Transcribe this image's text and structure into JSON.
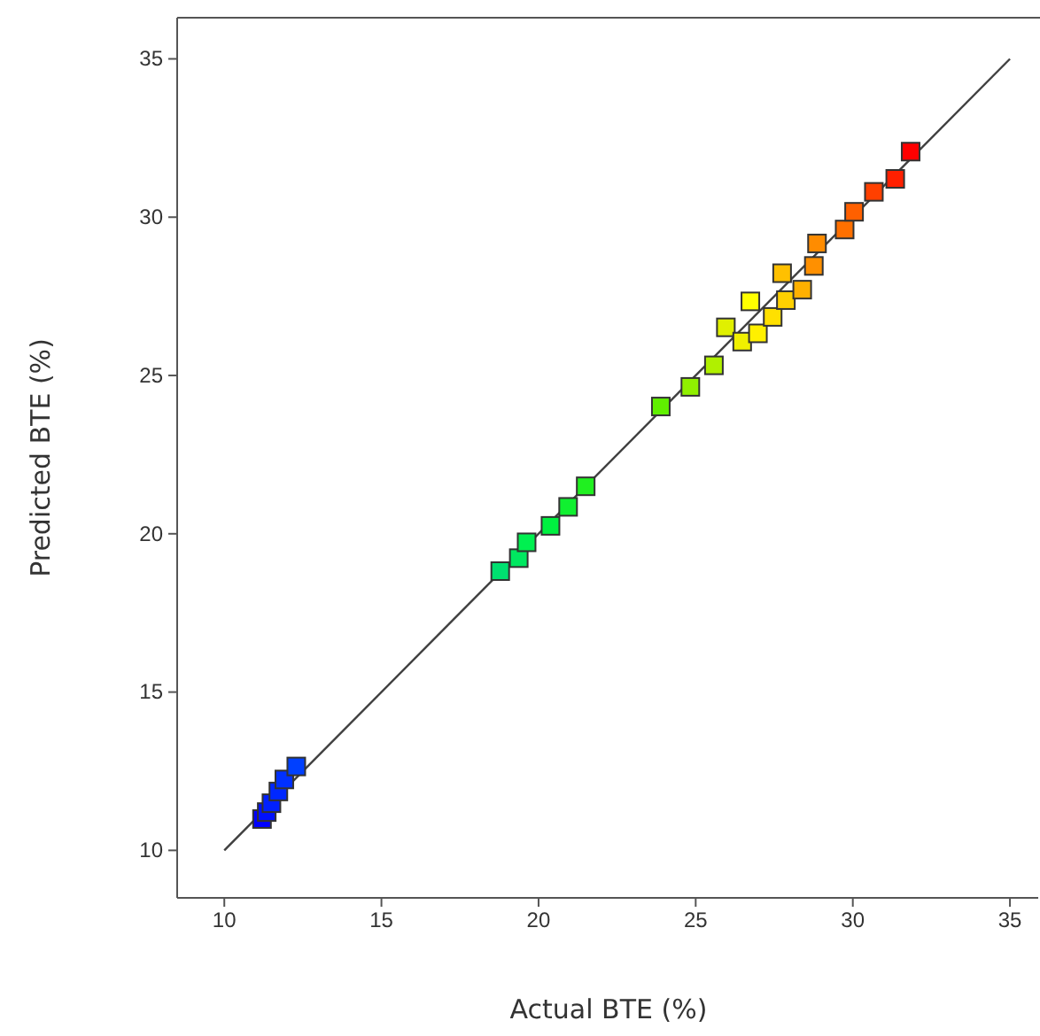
{
  "chart_data": {
    "type": "scatter",
    "xlabel": "Actual BTE (%)",
    "ylabel": "Predicted BTE (%)",
    "xlim": [
      8.5,
      35.9
    ],
    "ylim": [
      8.5,
      36.3
    ],
    "xticks": [
      10,
      15,
      20,
      25,
      30,
      35
    ],
    "yticks": [
      10,
      15,
      20,
      25,
      30,
      35
    ],
    "grid": false,
    "series": [
      {
        "marker": "square",
        "x": [
          11.2,
          11.35,
          11.5,
          11.72,
          11.91,
          12.29,
          18.78,
          19.37,
          19.62,
          20.38,
          20.94,
          21.5,
          23.89,
          24.83,
          25.58,
          25.96,
          26.48,
          26.74,
          26.98,
          27.45,
          27.87,
          27.75,
          28.39,
          28.76,
          28.86,
          29.74,
          30.04,
          30.67,
          31.35,
          31.84
        ],
        "values": [
          10.99,
          11.21,
          11.49,
          11.86,
          12.24,
          12.65,
          18.82,
          19.23,
          19.73,
          20.25,
          20.85,
          21.5,
          24.02,
          24.64,
          25.32,
          26.52,
          26.07,
          27.34,
          26.33,
          26.85,
          27.38,
          28.23,
          27.71,
          28.46,
          29.17,
          29.61,
          30.17,
          30.8,
          31.21,
          32.07
        ],
        "colors": [
          "#0000ff",
          "#0010ff",
          "#0020ff",
          "#0028ff",
          "#0030ff",
          "#0040ff",
          "#00e070",
          "#00e860",
          "#00f050",
          "#00f040",
          "#10f030",
          "#20f020",
          "#60f000",
          "#90f000",
          "#b0f000",
          "#e0f000",
          "#f0f000",
          "#ffff00",
          "#fff000",
          "#ffe000",
          "#ffd000",
          "#ffc000",
          "#ffb000",
          "#ff9000",
          "#ff8c00",
          "#ff7000",
          "#ff6000",
          "#ff4000",
          "#ff2000",
          "#ff0000"
        ]
      },
      {
        "type": "line",
        "color": "#404040",
        "x": [
          10,
          35
        ],
        "values": [
          10,
          35
        ]
      }
    ]
  }
}
